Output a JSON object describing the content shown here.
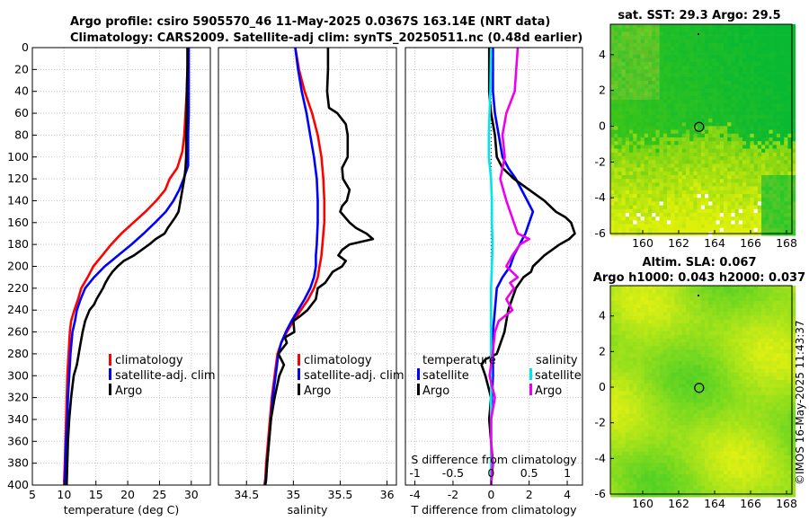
{
  "titles": {
    "line1": "Argo profile: csiro 5905570_46 11-May-2025 0.0367S 163.14E (NRT data)",
    "line2": "Climatology: CARS2009. Satellite-adj clim: synTS_20250511.nc (0.48d earlier)"
  },
  "colors": {
    "climatology": "#ff0000",
    "satellite": "#0000ff",
    "argo": "#000000",
    "temp_sat_diff": "#00e5ee",
    "sal_argo_diff": "#ee00ee",
    "grid": "#c8c8c8"
  },
  "chart_data": [
    {
      "type": "line",
      "id": "temperature",
      "xlabel": "temperature (deg C)",
      "ylabel": "",
      "xlim": [
        5,
        33
      ],
      "ylim": [
        400,
        0
      ],
      "xticks": [
        5,
        10,
        15,
        20,
        25,
        30
      ],
      "yticks": [
        0,
        20,
        40,
        60,
        80,
        100,
        120,
        140,
        160,
        180,
        200,
        220,
        240,
        260,
        280,
        300,
        320,
        340,
        360,
        380,
        400
      ],
      "legend": [
        "climatology",
        "satellite-adj. clim",
        "Argo"
      ],
      "series": [
        {
          "name": "climatology",
          "x": [
            29.5,
            29.4,
            29.3,
            29.1,
            28.9,
            28.6,
            27.8,
            26.6,
            25.9,
            24.5,
            22.8,
            20.9,
            19.0,
            17.4,
            16.0,
            14.6,
            13.7,
            12.7,
            12.2,
            11.6,
            11.1,
            10.9,
            10.7,
            10.5,
            10.4,
            10.3,
            10.2,
            10.1,
            10.0,
            10.0
          ],
          "y": [
            0,
            20,
            40,
            60,
            80,
            95,
            110,
            120,
            130,
            140,
            150,
            160,
            170,
            180,
            190,
            200,
            210,
            220,
            230,
            240,
            250,
            260,
            280,
            300,
            320,
            340,
            360,
            380,
            395,
            400
          ]
        },
        {
          "name": "satellite-adj. clim",
          "x": [
            29.6,
            29.6,
            29.6,
            29.6,
            29.5,
            29.5,
            29.5,
            28.8,
            28.1,
            27.2,
            26.0,
            24.3,
            22.5,
            20.6,
            18.5,
            16.4,
            14.7,
            13.3,
            12.6,
            12.0,
            11.7,
            11.3,
            11.0,
            10.8,
            10.6,
            10.5,
            10.3,
            10.2,
            10.1,
            10.1
          ],
          "y": [
            0,
            20,
            40,
            60,
            80,
            100,
            108,
            120,
            130,
            140,
            150,
            160,
            170,
            180,
            190,
            200,
            210,
            220,
            230,
            240,
            250,
            260,
            280,
            300,
            320,
            340,
            360,
            380,
            395,
            400
          ]
        },
        {
          "name": "Argo",
          "x": [
            29.4,
            29.4,
            29.3,
            29.3,
            29.2,
            29.2,
            29.1,
            28.9,
            28.6,
            28.3,
            28.0,
            27.5,
            26.9,
            26.3,
            25.8,
            24.4,
            23.4,
            22.2,
            21.0,
            19.4,
            18.4,
            17.6,
            17.0,
            16.5,
            16.1,
            15.6,
            15.1,
            14.7,
            14.0,
            13.3,
            12.9,
            12.6,
            12.3,
            12.0,
            11.5,
            11.1,
            10.8,
            10.6,
            10.5,
            10.4
          ],
          "y": [
            0,
            20,
            40,
            60,
            80,
            100,
            110,
            120,
            130,
            140,
            150,
            155,
            160,
            165,
            170,
            175,
            180,
            185,
            190,
            195,
            200,
            205,
            210,
            215,
            220,
            225,
            230,
            235,
            240,
            250,
            260,
            270,
            280,
            290,
            300,
            320,
            340,
            360,
            380,
            400
          ]
        }
      ]
    },
    {
      "type": "line",
      "id": "salinity",
      "xlabel": "salinity",
      "ylabel": "",
      "xlim": [
        34.2,
        36.1
      ],
      "ylim": [
        400,
        0
      ],
      "xticks": [
        34.5,
        35,
        35.5,
        36
      ],
      "legend": [
        "climatology",
        "satellite-adj. clim",
        "Argo"
      ],
      "series": [
        {
          "name": "climatology",
          "x": [
            35.02,
            35.06,
            35.12,
            35.2,
            35.26,
            35.3,
            35.32,
            35.33,
            35.33,
            35.32,
            35.31,
            35.3,
            35.29,
            35.28,
            35.26,
            35.22,
            35.16,
            35.08,
            35.0,
            34.93,
            34.87,
            34.83,
            34.8,
            34.77,
            34.75,
            34.73,
            34.71,
            34.7,
            34.69
          ],
          "y": [
            0,
            20,
            40,
            60,
            80,
            100,
            120,
            140,
            160,
            170,
            180,
            190,
            195,
            200,
            210,
            220,
            230,
            240,
            250,
            260,
            270,
            280,
            300,
            320,
            340,
            360,
            380,
            395,
            400
          ]
        },
        {
          "name": "satellite-adj. clim",
          "x": [
            35.02,
            35.05,
            35.09,
            35.14,
            35.18,
            35.22,
            35.25,
            35.26,
            35.26,
            35.25,
            35.24,
            35.24,
            35.22,
            35.18,
            35.12,
            35.05,
            34.98,
            34.92,
            34.87,
            34.84,
            34.81,
            34.78,
            34.76,
            34.74,
            34.72,
            34.71,
            34.7,
            34.7
          ],
          "y": [
            0,
            20,
            40,
            60,
            80,
            100,
            120,
            140,
            160,
            180,
            190,
            200,
            210,
            220,
            230,
            240,
            250,
            260,
            270,
            280,
            300,
            320,
            340,
            360,
            380,
            390,
            400,
            400
          ]
        },
        {
          "name": "Argo",
          "x": [
            35.37,
            35.37,
            35.36,
            35.38,
            35.47,
            35.56,
            35.58,
            35.58,
            35.52,
            35.53,
            35.6,
            35.57,
            35.52,
            35.5,
            35.6,
            35.67,
            35.78,
            35.85,
            35.6,
            35.52,
            35.48,
            35.56,
            35.52,
            35.42,
            35.34,
            35.26,
            35.24,
            35.15,
            35.08,
            35.0,
            35.01,
            34.91,
            34.93,
            34.84,
            34.9,
            34.85,
            34.8,
            34.76,
            34.74,
            34.72,
            34.71,
            34.7
          ],
          "y": [
            0,
            20,
            40,
            55,
            60,
            70,
            80,
            100,
            110,
            120,
            130,
            140,
            145,
            150,
            160,
            165,
            170,
            175,
            180,
            185,
            190,
            195,
            200,
            205,
            215,
            220,
            230,
            240,
            245,
            250,
            260,
            265,
            270,
            280,
            290,
            300,
            320,
            340,
            360,
            380,
            395,
            400
          ]
        }
      ]
    },
    {
      "type": "line",
      "id": "differences",
      "xlabel": "T difference from climatology",
      "xlabel_top": "S difference from climatology",
      "xlim": [
        -4.5,
        4.8
      ],
      "ylim": [
        400,
        0
      ],
      "xticks": [
        -4,
        -2,
        0,
        2,
        4
      ],
      "xlim_top": [
        -1.125,
        1.2
      ],
      "xticks_top": [
        -1,
        -0.5,
        0,
        0.5,
        1
      ],
      "legend": {
        "left_header": "temperature",
        "right_header": "salinity",
        "left": [
          "satellite",
          "Argo"
        ],
        "right": [
          "satellite",
          "Argo"
        ]
      },
      "series": [
        {
          "name": "temperature satellite",
          "axis": "T",
          "x": [
            0.1,
            0.1,
            0.1,
            0.2,
            0.4,
            0.6,
            0.9,
            1.3,
            1.9,
            2.2,
            2.0,
            1.8,
            1.5,
            1.2,
            1.0,
            0.6,
            0.3,
            0.2,
            0.1,
            0.1,
            0.1,
            0.0,
            0.0,
            0.0
          ],
          "y": [
            0,
            20,
            40,
            60,
            80,
            100,
            110,
            120,
            140,
            150,
            160,
            170,
            180,
            190,
            200,
            210,
            220,
            240,
            260,
            280,
            300,
            340,
            380,
            400
          ]
        },
        {
          "name": "temperature Argo",
          "axis": "T",
          "x": [
            -0.1,
            -0.1,
            -0.1,
            0.0,
            0.2,
            0.3,
            0.6,
            1.2,
            2.0,
            2.8,
            3.4,
            3.9,
            4.2,
            4.4,
            4.1,
            3.6,
            3.2,
            2.8,
            2.5,
            2.2,
            2.1,
            1.7,
            1.3,
            0.9,
            0.7,
            0.3,
            -0.3,
            -0.5,
            -0.3,
            0.0,
            -0.1,
            0.1,
            0.0
          ],
          "y": [
            0,
            20,
            40,
            60,
            80,
            100,
            110,
            120,
            130,
            140,
            150,
            155,
            160,
            170,
            175,
            180,
            185,
            190,
            195,
            200,
            205,
            210,
            220,
            240,
            260,
            280,
            285,
            290,
            300,
            320,
            340,
            380,
            400
          ]
        },
        {
          "name": "salinity satellite",
          "axis": "S",
          "x": [
            0.0,
            -0.01,
            -0.02,
            -0.03,
            -0.03,
            0.0,
            0.01,
            0.01,
            0.02,
            0.01,
            0.0,
            0.0,
            0.0,
            0.0,
            0.0,
            0.0
          ],
          "y": [
            0,
            40,
            60,
            80,
            100,
            120,
            140,
            160,
            180,
            200,
            220,
            240,
            280,
            320,
            360,
            400
          ]
        },
        {
          "name": "salinity Argo",
          "axis": "S",
          "x": [
            0.35,
            0.33,
            0.31,
            0.2,
            0.15,
            0.18,
            0.12,
            0.2,
            0.3,
            0.35,
            0.5,
            0.38,
            0.28,
            0.2,
            0.35,
            0.25,
            0.3,
            0.2,
            0.28,
            0.1,
            0.05,
            0.02,
            -0.02,
            0.05,
            0.0,
            0.0,
            0.02,
            0.0
          ],
          "y": [
            0,
            20,
            40,
            60,
            80,
            100,
            120,
            140,
            160,
            170,
            175,
            180,
            190,
            200,
            210,
            215,
            220,
            230,
            240,
            250,
            260,
            280,
            300,
            320,
            340,
            360,
            380,
            400
          ]
        }
      ]
    },
    {
      "type": "heatmap",
      "id": "sst-map",
      "title": "sat. SST: 29.3 Argo: 29.5",
      "xticks": [
        160,
        162,
        164,
        166,
        168
      ],
      "yticks": [
        4,
        2,
        0,
        -2,
        -4,
        -6
      ],
      "xlim": [
        158.2,
        168.3
      ],
      "ylim": [
        -6,
        5.7
      ],
      "marker": {
        "lon": 163.14,
        "lat": -0.0367
      }
    },
    {
      "type": "heatmap",
      "id": "sla-map",
      "title": "Altim. SLA: 0.067",
      "subtitle": "Argo h1000: 0.043 h2000: 0.037",
      "xticks": [
        160,
        162,
        164,
        166,
        168
      ],
      "yticks": [
        4,
        2,
        0,
        -2,
        -4,
        -6
      ],
      "xlim": [
        158.2,
        168.3
      ],
      "ylim": [
        -6,
        5.7
      ],
      "marker": {
        "lon": 163.14,
        "lat": -0.0367
      }
    }
  ],
  "legend_labels": {
    "climatology": "climatology",
    "satellite_adj": "satellite-adj. clim",
    "argo": "Argo",
    "temperature": "temperature",
    "salinity": "salinity",
    "satellite": "satellite"
  },
  "stamp": "©IMOS 16-May-2025 11:43:37"
}
